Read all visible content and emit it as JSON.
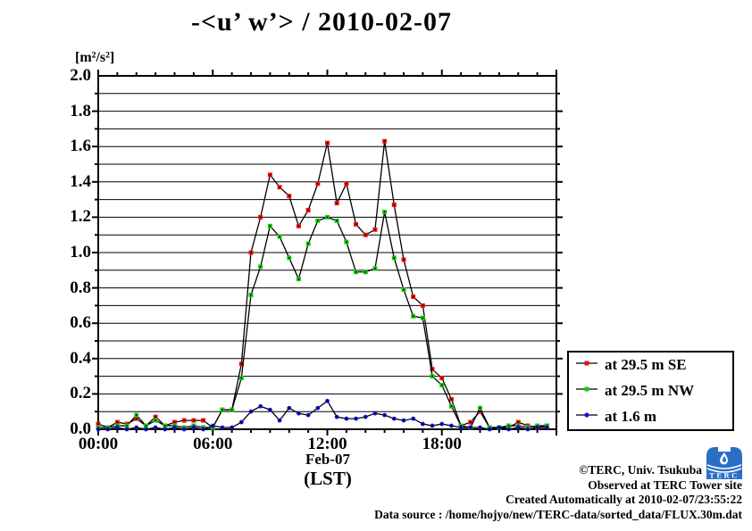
{
  "title": "-<u’ w’> / 2010-02-07",
  "y_axis": {
    "unit": "[m²/s²]",
    "ticks": [
      {
        "v": 2.0,
        "label": "2.0"
      },
      {
        "v": 1.8,
        "label": "1.8"
      },
      {
        "v": 1.6,
        "label": "1.6"
      },
      {
        "v": 1.4,
        "label": "1.4"
      },
      {
        "v": 1.2,
        "label": "1.2"
      },
      {
        "v": 1.0,
        "label": "1.0"
      },
      {
        "v": 0.8,
        "label": "0.8"
      },
      {
        "v": 0.6,
        "label": "0.6"
      },
      {
        "v": 0.4,
        "label": "0.4"
      },
      {
        "v": 0.2,
        "label": "0.2"
      },
      {
        "v": 0.0,
        "label": "0.0"
      }
    ]
  },
  "x_axis": {
    "ticks": [
      {
        "h": 0,
        "label": "00:00"
      },
      {
        "h": 6,
        "label": "06:00"
      },
      {
        "h": 12,
        "label": "12:00"
      },
      {
        "h": 18,
        "label": "18:00"
      }
    ],
    "date_label": "Feb-07",
    "unit_label": "(LST)"
  },
  "chart_data": {
    "type": "line",
    "title": "-<u’ w’> / 2010-02-07",
    "ylabel": "[m²/s²]",
    "xlabel": "Feb-07 (LST)",
    "ylim": [
      0.0,
      2.0
    ],
    "xlim_hours": [
      0,
      24
    ],
    "grid_minor_step": 0.1,
    "grid": "horizontal only",
    "legend_position": "right-bottom outside",
    "x": [
      0,
      0.5,
      1,
      1.5,
      2,
      2.5,
      3,
      3.5,
      4,
      4.5,
      5,
      5.5,
      6,
      6.5,
      7,
      7.5,
      8,
      8.5,
      9,
      9.5,
      10,
      10.5,
      11,
      11.5,
      12,
      12.5,
      13,
      13.5,
      14,
      14.5,
      15,
      15.5,
      16,
      16.5,
      17,
      17.5,
      18,
      18.5,
      19,
      19.5,
      20,
      20.5,
      21,
      21.5,
      22,
      22.5,
      23,
      23.5
    ],
    "series": [
      {
        "name": "at 29.5 m SE",
        "color": "#ee1111",
        "marker": "square",
        "line_color": "#000000",
        "values": [
          0.03,
          0.01,
          0.04,
          0.03,
          0.06,
          0.02,
          0.07,
          0.02,
          0.04,
          0.05,
          0.05,
          0.05,
          0.01,
          0.11,
          0.11,
          0.37,
          1.0,
          1.2,
          1.44,
          1.37,
          1.32,
          1.15,
          1.24,
          1.39,
          1.62,
          1.28,
          1.39,
          1.16,
          1.1,
          1.13,
          1.63,
          1.27,
          0.96,
          0.75,
          0.7,
          0.34,
          0.29,
          0.17,
          0.02,
          0.04,
          0.1,
          0.01,
          0.01,
          0.01,
          0.04,
          0.02,
          0.01,
          0.02
        ]
      },
      {
        "name": "at 29.5 m NW",
        "color": "#11cc11",
        "marker": "square",
        "line_color": "#000000",
        "values": [
          0.01,
          0.01,
          0.02,
          0.02,
          0.08,
          0.02,
          0.05,
          0.02,
          0.02,
          0.01,
          0.02,
          0.01,
          0.01,
          0.11,
          0.11,
          0.29,
          0.76,
          0.92,
          1.15,
          1.09,
          0.97,
          0.85,
          1.05,
          1.18,
          1.2,
          1.18,
          1.06,
          0.89,
          0.89,
          0.91,
          1.23,
          0.97,
          0.79,
          0.64,
          0.63,
          0.3,
          0.25,
          0.13,
          0.02,
          0.01,
          0.12,
          0.01,
          0.01,
          0.02,
          0.02,
          0.01,
          0.02,
          0.02
        ]
      },
      {
        "name": "at 1.6 m",
        "color": "#1111dd",
        "marker": "circle",
        "line_color": "#000000",
        "values": [
          0.0,
          0.0,
          0.01,
          0.0,
          0.01,
          0.0,
          0.01,
          0.0,
          0.01,
          0.0,
          0.01,
          0.0,
          0.02,
          0.01,
          0.01,
          0.04,
          0.1,
          0.13,
          0.11,
          0.05,
          0.12,
          0.09,
          0.08,
          0.12,
          0.16,
          0.07,
          0.06,
          0.06,
          0.07,
          0.09,
          0.08,
          0.06,
          0.05,
          0.06,
          0.03,
          0.02,
          0.03,
          0.02,
          0.01,
          0.01,
          0.01,
          0.0,
          0.01,
          0.0,
          0.01,
          0.0,
          0.01,
          0.01
        ]
      }
    ]
  },
  "footer": {
    "lines": [
      "©TERC, Univ. Tsukuba",
      "Observed at TERC Tower site",
      "Created Automatically at 2010-02-07/23:55:22",
      "Data source : /home/hojyo/new/TERC-data/sorted_data/FLUX.30m.dat"
    ]
  },
  "logo": {
    "text": "TERC",
    "color": "#2a6fc4"
  }
}
